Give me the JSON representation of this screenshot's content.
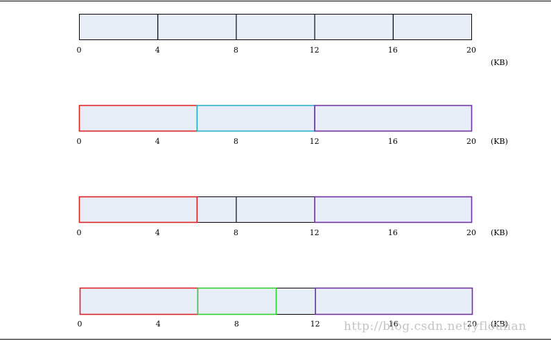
{
  "unit_label": "(KB)",
  "ticks": [
    "0",
    "4",
    "8",
    "12",
    "16",
    "20"
  ],
  "watermark": "http://blog.csdn.net/yflouhan",
  "colors": {
    "fill": "#e8eef8",
    "black": "#000000",
    "red": "#e02020",
    "cyan": "#20b0c8",
    "purple": "#7030a0",
    "green": "#30d030"
  },
  "rows": [
    {
      "segments": [
        {
          "start": 0,
          "end": 4,
          "color": "black"
        },
        {
          "start": 4,
          "end": 8,
          "color": "black"
        },
        {
          "start": 8,
          "end": 12,
          "color": "black"
        },
        {
          "start": 12,
          "end": 16,
          "color": "black"
        },
        {
          "start": 16,
          "end": 20,
          "color": "black"
        }
      ]
    },
    {
      "segments": [
        {
          "start": 0,
          "end": 6,
          "color": "red"
        },
        {
          "start": 6,
          "end": 12,
          "color": "cyan"
        },
        {
          "start": 12,
          "end": 20,
          "color": "purple"
        }
      ]
    },
    {
      "segments": [
        {
          "start": 0,
          "end": 6,
          "color": "red"
        },
        {
          "start": 6,
          "end": 8,
          "color": "black"
        },
        {
          "start": 8,
          "end": 12,
          "color": "black"
        },
        {
          "start": 12,
          "end": 20,
          "color": "purple"
        }
      ]
    },
    {
      "segments": [
        {
          "start": 0,
          "end": 6,
          "color": "red"
        },
        {
          "start": 6,
          "end": 10,
          "color": "green"
        },
        {
          "start": 10,
          "end": 12,
          "color": "black"
        },
        {
          "start": 12,
          "end": 20,
          "color": "purple"
        }
      ]
    }
  ]
}
